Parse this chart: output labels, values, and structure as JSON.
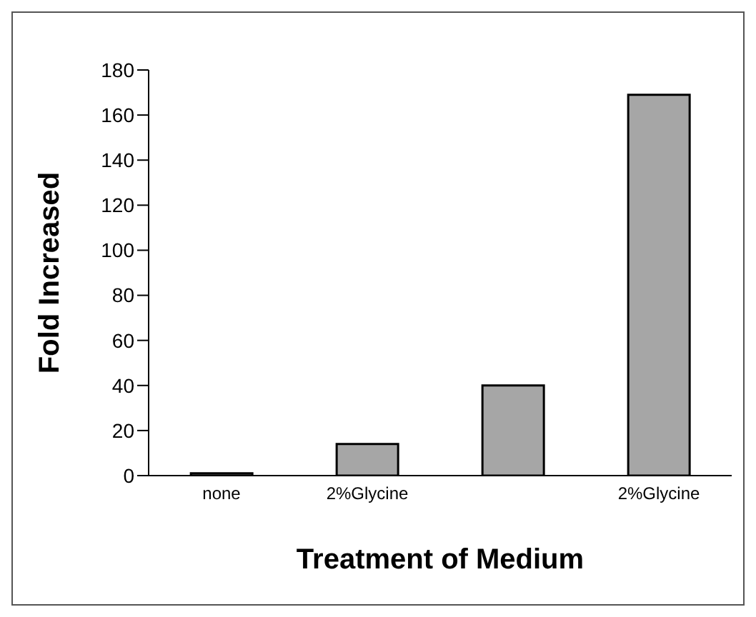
{
  "chart_data": {
    "type": "bar",
    "xlabel": "Treatment of Medium",
    "ylabel": "Fold Increased",
    "categories": [
      "none",
      "2%Glycine",
      null,
      "2%Glycine"
    ],
    "values": [
      1,
      14,
      40,
      169
    ],
    "color": "#a6a6a6",
    "ylim": [
      0,
      180
    ],
    "yticks": [
      0,
      20,
      40,
      60,
      80,
      100,
      120,
      140,
      160,
      180
    ],
    "grid": false
  }
}
